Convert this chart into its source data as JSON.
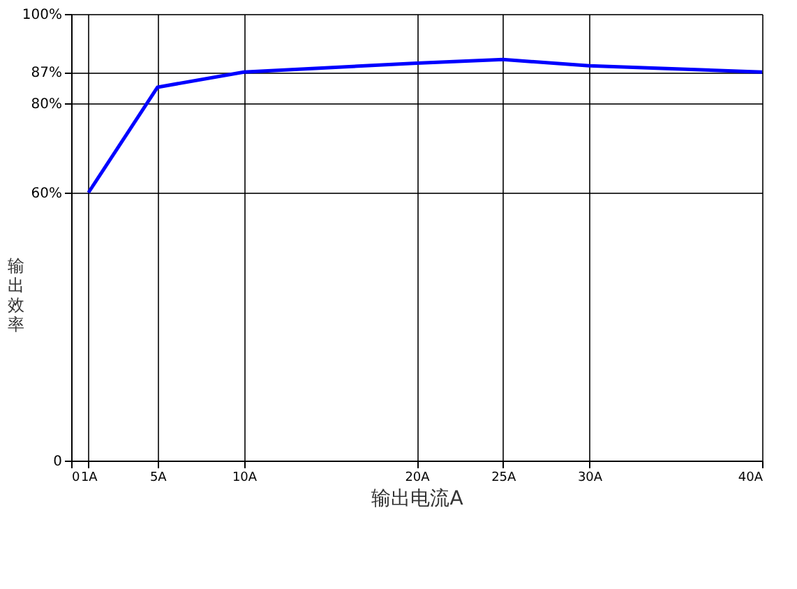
{
  "chart_data": {
    "type": "line",
    "xlabel": "输出电流A",
    "ylabel": "输出效率",
    "x": [
      1,
      5,
      10,
      20,
      25,
      30,
      40
    ],
    "series": [
      {
        "color": "#0000ff",
        "values": [
          60,
          83.6,
          87,
          89.0,
          89.8,
          88.4,
          87
        ]
      }
    ],
    "xlim": [
      0,
      40
    ],
    "ylim": [
      0,
      100
    ],
    "xticks": [
      0,
      {
        "value": 1,
        "label": "1A"
      },
      {
        "value": 5,
        "label": "5A"
      },
      {
        "value": 10,
        "label": "10A"
      },
      {
        "value": 20,
        "label": "20A"
      },
      {
        "value": 25,
        "label": "25A"
      },
      {
        "value": 30,
        "label": "30A"
      },
      {
        "value": 40,
        "label": "40A"
      }
    ],
    "yticks": [
      0,
      {
        "value": 60,
        "label": "60%"
      },
      {
        "value": 80,
        "label": "80%"
      },
      {
        "value": 87,
        "label": "87%"
      },
      {
        "value": 100,
        "label": "100%"
      }
    ],
    "grid": true,
    "marker": "none",
    "line_style": "solid"
  }
}
